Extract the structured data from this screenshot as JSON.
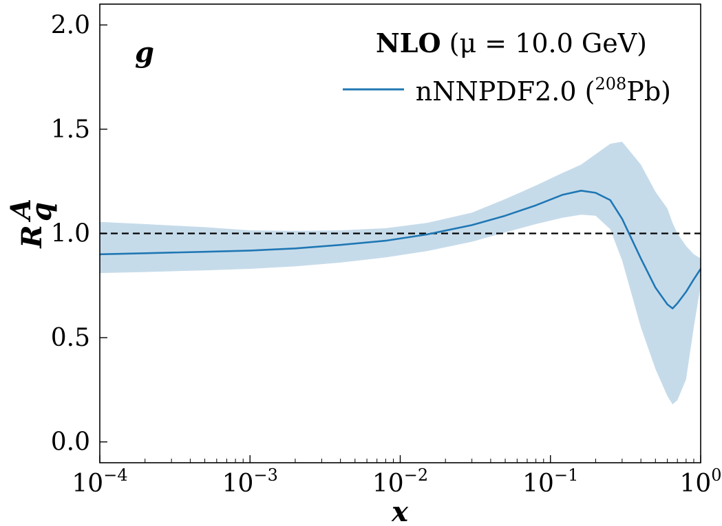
{
  "chart_data": {
    "type": "line",
    "panel_label": "g",
    "xlabel": "x",
    "ylabel": "R",
    "ylabel_sup": "A",
    "ylabel_sub": "q",
    "xscale": "log",
    "xlim": [
      0.0001,
      1
    ],
    "ylim": [
      -0.1,
      2.1
    ],
    "x_ticks": [
      {
        "value": 0.0001,
        "base": "10",
        "exp": "−4"
      },
      {
        "value": 0.001,
        "base": "10",
        "exp": "−3"
      },
      {
        "value": 0.01,
        "base": "10",
        "exp": "−2"
      },
      {
        "value": 0.1,
        "base": "10",
        "exp": "−1"
      },
      {
        "value": 1,
        "base": "10",
        "exp": "0"
      }
    ],
    "y_ticks": [
      {
        "value": 0.0,
        "label": "0.0"
      },
      {
        "value": 0.5,
        "label": "0.5"
      },
      {
        "value": 1.0,
        "label": "1.0"
      },
      {
        "value": 1.5,
        "label": "1.5"
      },
      {
        "value": 2.0,
        "label": "2.0"
      }
    ],
    "legend": {
      "title_bold": "NLO",
      "title_rest": " (μ = 10.0 GeV)",
      "entry_main": "nNNPDF2.0 (",
      "entry_sup": "208",
      "entry_end": "Pb)",
      "placement": "top-right"
    },
    "reference_line": {
      "y": 1.0,
      "style": "dashed",
      "color": "#000000"
    },
    "colors": {
      "line": "#1f77b4",
      "band": "#c6dbea"
    },
    "series": [
      {
        "name": "nNNPDF2.0 (208Pb)",
        "x": [
          0.0001,
          0.0002,
          0.0005,
          0.001,
          0.002,
          0.004,
          0.008,
          0.015,
          0.03,
          0.05,
          0.08,
          0.12,
          0.16,
          0.2,
          0.25,
          0.3,
          0.4,
          0.5,
          0.6,
          0.65,
          0.7,
          0.8,
          0.9,
          1.0
        ],
        "central": [
          0.9,
          0.905,
          0.912,
          0.918,
          0.928,
          0.945,
          0.965,
          0.995,
          1.04,
          1.085,
          1.135,
          1.185,
          1.205,
          1.195,
          1.16,
          1.07,
          0.88,
          0.74,
          0.66,
          0.64,
          0.665,
          0.72,
          0.78,
          0.83
        ],
        "lower": [
          0.81,
          0.815,
          0.823,
          0.83,
          0.842,
          0.86,
          0.885,
          0.915,
          0.96,
          1.005,
          1.045,
          1.075,
          1.09,
          1.085,
          1.02,
          0.87,
          0.55,
          0.35,
          0.22,
          0.18,
          0.2,
          0.3,
          0.55,
          0.75
        ],
        "upper": [
          1.055,
          1.045,
          1.03,
          1.015,
          1.012,
          1.015,
          1.025,
          1.05,
          1.1,
          1.165,
          1.23,
          1.29,
          1.33,
          1.38,
          1.43,
          1.44,
          1.33,
          1.2,
          1.12,
          1.05,
          1.0,
          0.94,
          0.9,
          0.88
        ]
      }
    ]
  }
}
